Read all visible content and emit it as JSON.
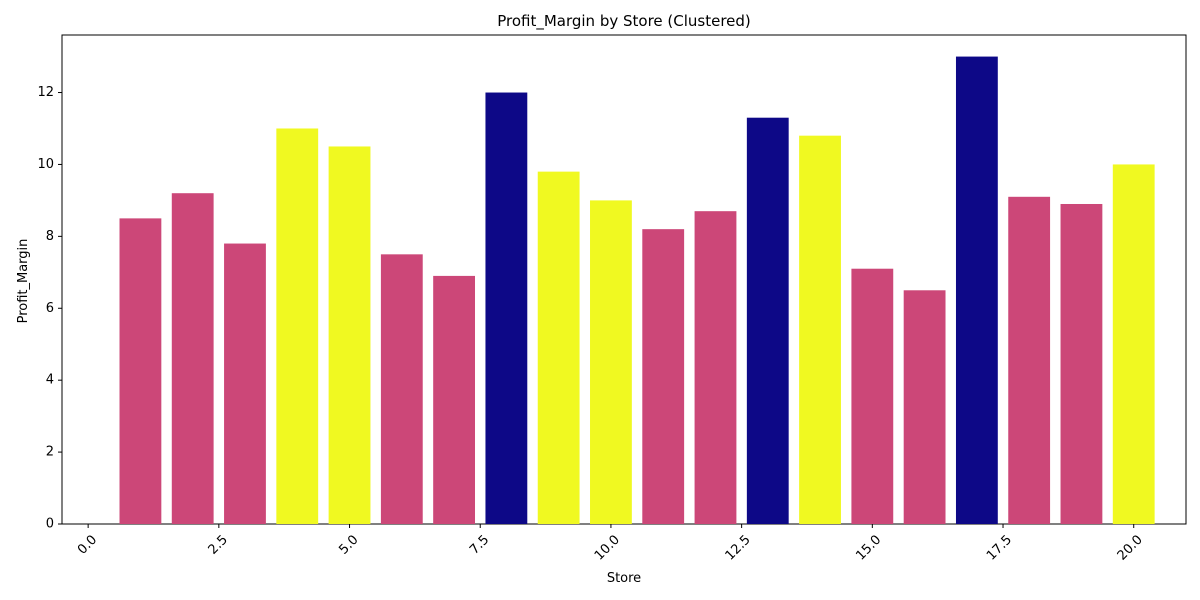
{
  "chart_data": {
    "type": "bar",
    "title": "Profit_Margin by Store (Clustered)",
    "xlabel": "Store",
    "ylabel": "Profit_Margin",
    "xlim": [
      -0.5,
      21.0
    ],
    "ylim": [
      0,
      13.6
    ],
    "x_ticks": [
      0.0,
      2.5,
      5.0,
      7.5,
      10.0,
      12.5,
      15.0,
      17.5,
      20.0
    ],
    "x_tick_labels": [
      "0.0",
      "2.5",
      "5.0",
      "7.5",
      "10.0",
      "12.5",
      "15.0",
      "17.5",
      "20.0"
    ],
    "y_ticks": [
      0,
      2,
      4,
      6,
      8,
      10,
      12
    ],
    "y_tick_labels": [
      "0",
      "2",
      "4",
      "6",
      "8",
      "10",
      "12"
    ],
    "grid": false,
    "cluster_colors": {
      "0": "#0d0887",
      "1": "#cc4778",
      "2": "#f0f921"
    },
    "bars": [
      {
        "x": 1,
        "value": 8.5,
        "cluster": 1
      },
      {
        "x": 2,
        "value": 9.2,
        "cluster": 1
      },
      {
        "x": 3,
        "value": 7.8,
        "cluster": 1
      },
      {
        "x": 4,
        "value": 11.0,
        "cluster": 2
      },
      {
        "x": 5,
        "value": 10.5,
        "cluster": 2
      },
      {
        "x": 6,
        "value": 7.5,
        "cluster": 1
      },
      {
        "x": 7,
        "value": 6.9,
        "cluster": 1
      },
      {
        "x": 8,
        "value": 12.0,
        "cluster": 0
      },
      {
        "x": 9,
        "value": 9.8,
        "cluster": 2
      },
      {
        "x": 10,
        "value": 9.0,
        "cluster": 2
      },
      {
        "x": 11,
        "value": 8.2,
        "cluster": 1
      },
      {
        "x": 12,
        "value": 8.7,
        "cluster": 1
      },
      {
        "x": 13,
        "value": 11.3,
        "cluster": 0
      },
      {
        "x": 14,
        "value": 10.8,
        "cluster": 2
      },
      {
        "x": 15,
        "value": 7.1,
        "cluster": 1
      },
      {
        "x": 16,
        "value": 6.5,
        "cluster": 1
      },
      {
        "x": 17,
        "value": 13.0,
        "cluster": 0
      },
      {
        "x": 18,
        "value": 9.1,
        "cluster": 1
      },
      {
        "x": 19,
        "value": 8.9,
        "cluster": 1
      },
      {
        "x": 20,
        "value": 10.0,
        "cluster": 2
      }
    ]
  }
}
